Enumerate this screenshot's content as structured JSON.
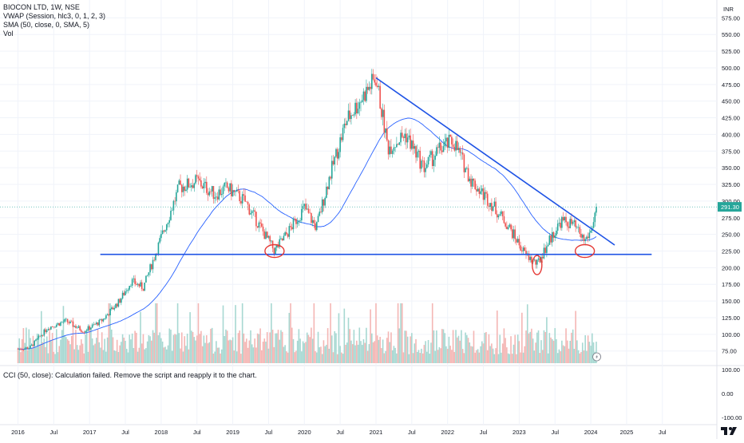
{
  "legend": {
    "title": "BIOCON LTD, 1W, NSE",
    "vwap": "VWAP (Session, hlc3, 0, 1, 2, 3)",
    "sma": "SMA (50, close, 0, SMA, 5)",
    "vol": "Vol"
  },
  "cci_message": "CCI (50, close): Calculation failed. Remove the script and reapply it to the chart.",
  "currency": "INR",
  "last_price_label": "291.30",
  "colors": {
    "up": "#26a69a",
    "down": "#ef5350",
    "vol_up": "#a7d8d2",
    "vol_down": "#f4b6b4",
    "sma": "#2962ff",
    "trendline": "#1e53e5",
    "circle": "#e53935",
    "grid": "#f0f3fa",
    "axis_text": "#131722"
  },
  "chart_data": {
    "type": "candlestick",
    "title": "BIOCON LTD, 1W, NSE",
    "y_axis": {
      "label": "INR",
      "ticks": [
        "575.00",
        "550.00",
        "525.00",
        "500.00",
        "475.00",
        "450.00",
        "425.00",
        "400.00",
        "375.00",
        "350.00",
        "325.00",
        "300.00",
        "275.00",
        "250.00",
        "225.00",
        "200.00",
        "175.00",
        "150.00",
        "125.00",
        "100.00",
        "75.00"
      ],
      "ylim": [
        75,
        585
      ]
    },
    "x_axis": {
      "ticks": [
        "2016",
        "Jul",
        "2017",
        "Jul",
        "2018",
        "Jul",
        "2019",
        "Jul",
        "2020",
        "Jul",
        "2021",
        "Jul",
        "2022",
        "Jul",
        "2023",
        "Jul",
        "2024",
        "2025",
        "Jul"
      ]
    },
    "price_path": [
      [
        "2016-01",
        78
      ],
      [
        "2016-03",
        80
      ],
      [
        "2016-06",
        110
      ],
      [
        "2016-09",
        120
      ],
      [
        "2016-12",
        105
      ],
      [
        "2017-03",
        120
      ],
      [
        "2017-06",
        150
      ],
      [
        "2017-08",
        180
      ],
      [
        "2017-10",
        170
      ],
      [
        "2018-01",
        245
      ],
      [
        "2018-04",
        320
      ],
      [
        "2018-07",
        330
      ],
      [
        "2018-10",
        310
      ],
      [
        "2018-12",
        320
      ],
      [
        "2019-03",
        300
      ],
      [
        "2019-06",
        255
      ],
      [
        "2019-08",
        225
      ],
      [
        "2019-10",
        250
      ],
      [
        "2020-01",
        290
      ],
      [
        "2020-03",
        260
      ],
      [
        "2020-05",
        330
      ],
      [
        "2020-08",
        420
      ],
      [
        "2020-11",
        460
      ],
      [
        "2021-01",
        485
      ],
      [
        "2021-03",
        380
      ],
      [
        "2021-06",
        400
      ],
      [
        "2021-09",
        350
      ],
      [
        "2021-12",
        380
      ],
      [
        "2022-02",
        390
      ],
      [
        "2022-05",
        330
      ],
      [
        "2022-08",
        300
      ],
      [
        "2022-11",
        265
      ],
      [
        "2023-02",
        220
      ],
      [
        "2023-04",
        205
      ],
      [
        "2023-06",
        240
      ],
      [
        "2023-08",
        270
      ],
      [
        "2023-10",
        265
      ],
      [
        "2023-12",
        240
      ],
      [
        "2024-01",
        255
      ],
      [
        "2024-02",
        291.3
      ]
    ],
    "last_price": 291.3,
    "support_level": 220,
    "trendline": {
      "start": [
        "2021-01",
        485
      ],
      "end": [
        "2024-05",
        234
      ]
    },
    "circled_lows": [
      "2019-08",
      "2023-04",
      "2023-12"
    ],
    "cci_panel": {
      "ticks": [
        "100.00",
        "0.00",
        "-100.00"
      ],
      "message": "CCI (50, close): Calculation failed. Remove the script and reapply it to the chart."
    },
    "grid": true
  }
}
